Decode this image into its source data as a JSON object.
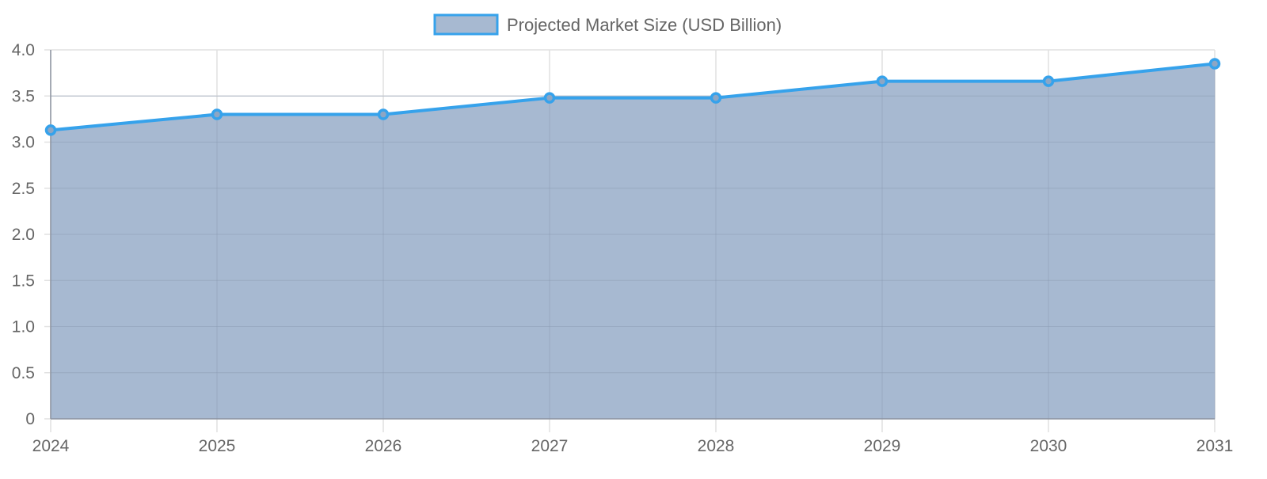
{
  "chart_data": {
    "type": "area",
    "title": "",
    "categories": [
      "2024",
      "2025",
      "2026",
      "2027",
      "2028",
      "2029",
      "2030",
      "2031"
    ],
    "series": [
      {
        "name": "Projected Market Size (USD Billion)",
        "values": [
          3.13,
          3.3,
          3.3,
          3.48,
          3.48,
          3.66,
          3.66,
          3.85
        ],
        "line_color": "#36a2eb",
        "fill_color": "#a7b9d1"
      }
    ],
    "xlabel": "",
    "ylabel": "",
    "ylim": [
      0,
      4.0
    ],
    "yticks": [
      "0",
      "0.5",
      "1.0",
      "1.5",
      "2.0",
      "2.5",
      "3.0",
      "3.5",
      "4.0"
    ],
    "grid": true,
    "legend_position": "top"
  },
  "legend": {
    "label": "Projected Market Size (USD Billion)"
  },
  "colors": {
    "line": "#36a2eb",
    "fill": "#a7b9d1",
    "grid": "#e1e1e1",
    "text": "#666666"
  }
}
